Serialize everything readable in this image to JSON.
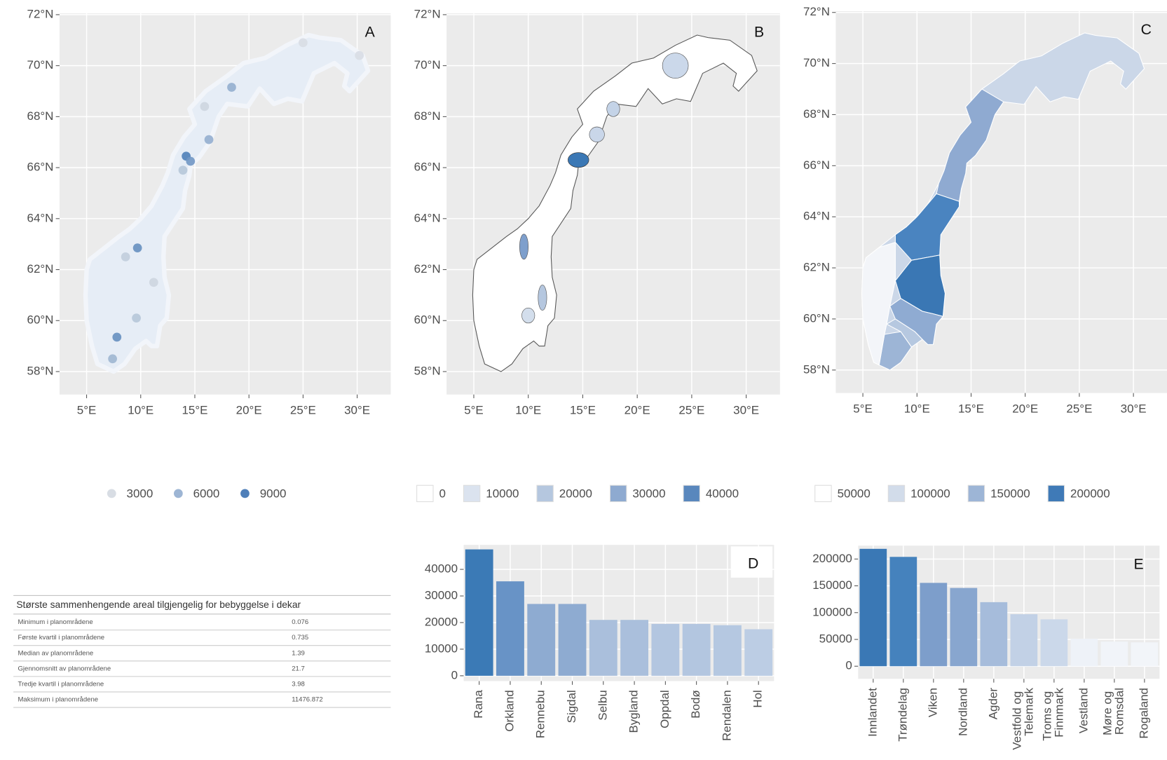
{
  "chart_data": [
    {
      "type": "point-map",
      "label": "A",
      "x": [
        14.2,
        14.6,
        9.7,
        7.8,
        7.4,
        18.4,
        16.3,
        25.0,
        9.6,
        13.9,
        11.2,
        15.9,
        30.2,
        8.6
      ],
      "y": [
        66.45,
        66.25,
        62.85,
        59.35,
        58.5,
        69.15,
        67.1,
        70.9,
        60.1,
        65.9,
        61.5,
        68.4,
        70.4,
        62.5
      ],
      "values": [
        9000,
        7500,
        8000,
        8000,
        5500,
        6000,
        6000,
        3000,
        4500,
        4500,
        3500,
        3500,
        3000,
        4000
      ],
      "xlim": [
        2.5,
        33.1
      ],
      "ylim": [
        57.1,
        72.05
      ],
      "xticks": [
        {
          "value": 5,
          "label": "5°E"
        },
        {
          "value": 10,
          "label": "10°E"
        },
        {
          "value": 15,
          "label": "15°E"
        },
        {
          "value": 20,
          "label": "20°E"
        },
        {
          "value": 25,
          "label": "25°E"
        },
        {
          "value": 30,
          "label": "30°E"
        }
      ],
      "yticks": [
        {
          "value": 58,
          "label": "58°N"
        },
        {
          "value": 60,
          "label": "60°N"
        },
        {
          "value": 62,
          "label": "62°N"
        },
        {
          "value": 64,
          "label": "64°N"
        },
        {
          "value": 66,
          "label": "66°N"
        },
        {
          "value": 68,
          "label": "68°N"
        },
        {
          "value": 70,
          "label": "70°N"
        },
        {
          "value": 72,
          "label": "72°N"
        }
      ],
      "legend_values": [
        3000,
        6000,
        9000
      ],
      "legend_colors": [
        "#d8dde4",
        "#9db5d4",
        "#4f7fb9"
      ],
      "grid": true
    },
    {
      "type": "choropleth-map",
      "label": "B",
      "xlim": [
        2.5,
        33.1
      ],
      "ylim": [
        57.1,
        72.05
      ],
      "xticks": [
        {
          "value": 5,
          "label": "5°E"
        },
        {
          "value": 10,
          "label": "10°E"
        },
        {
          "value": 15,
          "label": "15°E"
        },
        {
          "value": 20,
          "label": "20°E"
        },
        {
          "value": 25,
          "label": "25°E"
        },
        {
          "value": 30,
          "label": "30°E"
        }
      ],
      "yticks": [
        {
          "value": 58,
          "label": "58°N"
        },
        {
          "value": 60,
          "label": "60°N"
        },
        {
          "value": 62,
          "label": "62°N"
        },
        {
          "value": 64,
          "label": "64°N"
        },
        {
          "value": 66,
          "label": "66°N"
        },
        {
          "value": 68,
          "label": "68°N"
        },
        {
          "value": 70,
          "label": "70°N"
        },
        {
          "value": 72,
          "label": "72°N"
        }
      ],
      "legend_values": [
        0,
        10000,
        20000,
        30000,
        40000
      ],
      "legend_colors": [
        "#ffffff",
        "#dbe3ef",
        "#b5c7df",
        "#8eaad0",
        "#5987bd"
      ],
      "grid": true
    },
    {
      "type": "choropleth-map",
      "label": "C",
      "xlim": [
        2.5,
        33.1
      ],
      "ylim": [
        57.1,
        72.05
      ],
      "xticks": [
        {
          "value": 5,
          "label": "5°E"
        },
        {
          "value": 10,
          "label": "10°E"
        },
        {
          "value": 15,
          "label": "15°E"
        },
        {
          "value": 20,
          "label": "20°E"
        },
        {
          "value": 25,
          "label": "25°E"
        },
        {
          "value": 30,
          "label": "30°E"
        }
      ],
      "yticks": [
        {
          "value": 58,
          "label": "58°N"
        },
        {
          "value": 60,
          "label": "60°N"
        },
        {
          "value": 62,
          "label": "62°N"
        },
        {
          "value": 64,
          "label": "64°N"
        },
        {
          "value": 66,
          "label": "66°N"
        },
        {
          "value": 68,
          "label": "68°N"
        },
        {
          "value": 70,
          "label": "70°N"
        },
        {
          "value": 72,
          "label": "72°N"
        }
      ],
      "legend_values": [
        50000,
        100000,
        150000,
        200000
      ],
      "legend_colors": [
        "#ffffff",
        "#d2dcea",
        "#9db5d6",
        "#3f7ab7"
      ],
      "grid": true
    },
    {
      "type": "bar",
      "label": "D",
      "categories": [
        "Rana",
        "Orkland",
        "Rennebu",
        "Sigdal",
        "Selbu",
        "Bygland",
        "Oppdal",
        "Bodø",
        "Rendalen",
        "Hol"
      ],
      "values": [
        47500,
        35500,
        27000,
        27000,
        21000,
        21000,
        19500,
        19500,
        19000,
        17500
      ],
      "colors": [
        "#3b7ab6",
        "#6893c6",
        "#8eabd1",
        "#8eabd1",
        "#aabfdc",
        "#aabfdc",
        "#b3c6e0",
        "#b3c6e0",
        "#b5c8e1",
        "#bccde4"
      ],
      "ylim": [
        -2000,
        49200
      ],
      "yticks": [
        0,
        10000,
        20000,
        30000,
        40000
      ],
      "grid": true
    },
    {
      "type": "bar",
      "label": "E",
      "categories": [
        "Innlandet",
        "Trøndelag",
        "Viken",
        "Nordland",
        "Agder",
        "Vestfold og Telemark",
        "Troms og Finnmark",
        "Vestland",
        "Møre og Romsdal",
        "Rogaland"
      ],
      "values": [
        219000,
        204000,
        155500,
        146000,
        119500,
        97000,
        87500,
        51500,
        46000,
        44500
      ],
      "colors": [
        "#3a78b5",
        "#4582bd",
        "#7d9ecb",
        "#88a6cf",
        "#a6bcdb",
        "#c2d1e6",
        "#cbd8ea",
        "#eef2f8",
        "#f1f4f9",
        "#f2f5f9"
      ],
      "ylim": [
        -23600,
        225000
      ],
      "yticks": [
        0,
        50000,
        100000,
        150000,
        200000
      ],
      "grid": true
    }
  ],
  "table": {
    "title": "Største sammenhengende areal tilgjengelig for bebyggelse i dekar",
    "rows": [
      [
        "Minimum i planområdene",
        "0.076"
      ],
      [
        "Første kvartil i planområdene",
        "0.735"
      ],
      [
        "Median av planområdene",
        "1.39"
      ],
      [
        "Gjennomsnitt av planområdene",
        "21.7"
      ],
      [
        "Tredje kvartil i planområdene",
        "3.98"
      ],
      [
        "Maksimum i planområdene",
        "11476.872"
      ]
    ]
  }
}
